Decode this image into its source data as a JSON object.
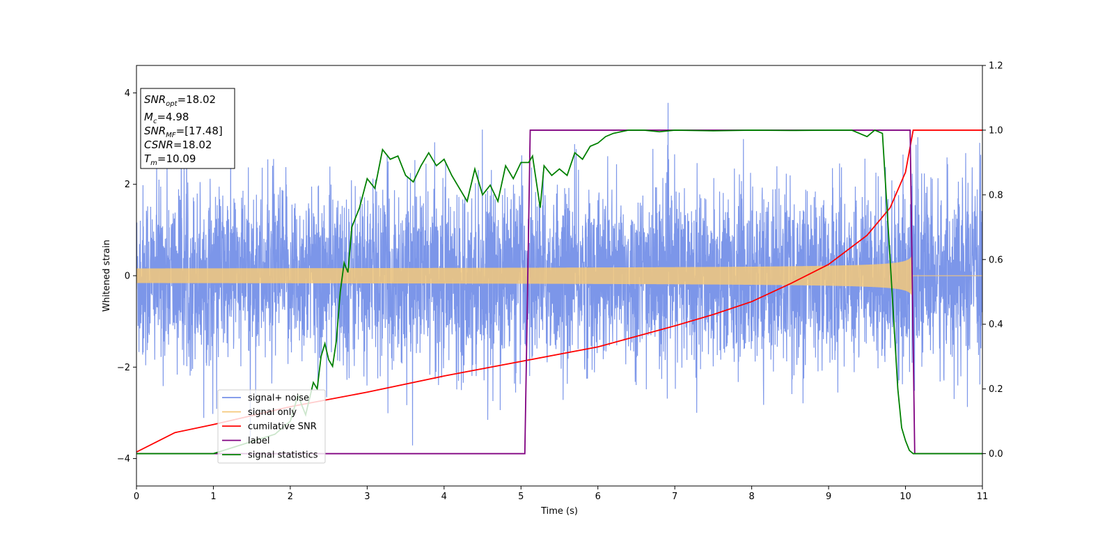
{
  "chart_data": {
    "type": "line",
    "xlabel": "Time (s)",
    "ylabel": "Whitened strain",
    "xlim": [
      0,
      11
    ],
    "ylim_left": [
      -4.6,
      4.6
    ],
    "ylim_right": [
      -0.1,
      1.2
    ],
    "grid": false,
    "legend_placement": "lower-left",
    "x_ticks": [
      "0",
      "1",
      "2",
      "3",
      "4",
      "5",
      "6",
      "7",
      "8",
      "9",
      "10",
      "11"
    ],
    "y_left_ticks": [
      "−4",
      "−2",
      "0",
      "2",
      "4"
    ],
    "y_right_ticks": [
      "0.0",
      "0.2",
      "0.4",
      "0.6",
      "0.8",
      "1.0",
      "1.2"
    ],
    "annotation": {
      "snr_opt": {
        "base": "SNR",
        "sub": "opt",
        "value": "=18.02"
      },
      "mc": {
        "base": "M",
        "sub": "c",
        "value": "=4.98"
      },
      "snr_mf": {
        "base": "SNR",
        "sub": "MF",
        "value": "=[17.48]"
      },
      "csnr": {
        "base": "CSNR",
        "sub": "",
        "value": "=18.02"
      },
      "tm": {
        "base": "T",
        "sub": "m",
        "value": "=10.09"
      }
    },
    "series": [
      {
        "name": "signal+ noise",
        "axis": "left",
        "color": "#7590e8",
        "description": "whitened noise, amplitude mostly within ±2.5, peaks to about ±4.1 over 0–11 s"
      },
      {
        "name": "signal only",
        "axis": "left",
        "color": "#f5c97a",
        "description": "chirp, amplitude ~0.08 at t=0 growing to ~1.1 at t≈10.09 s, zero afterwards",
        "merger_time": 10.09
      },
      {
        "name": "cumilative SNR",
        "axis": "right",
        "color": "#ff0000",
        "x": [
          0,
          0.5,
          1,
          2,
          3,
          4,
          5,
          6,
          7,
          7.5,
          8,
          8.5,
          9,
          9.5,
          9.8,
          10,
          10.1,
          11
        ],
        "y": [
          0.005,
          0.065,
          0.09,
          0.145,
          0.19,
          0.24,
          0.285,
          0.33,
          0.395,
          0.43,
          0.47,
          0.525,
          0.585,
          0.675,
          0.76,
          0.87,
          1.0,
          1.0
        ]
      },
      {
        "name": "label",
        "axis": "right",
        "color": "#800080",
        "x": [
          0,
          5.05,
          5.12,
          10.06,
          10.12,
          11
        ],
        "y": [
          0.0,
          0.0,
          1.0,
          1.0,
          0.0,
          0.0
        ]
      },
      {
        "name": "signal statistics",
        "axis": "right",
        "color": "#008000",
        "x": [
          0,
          1.0,
          1.8,
          2.0,
          2.1,
          2.2,
          2.3,
          2.35,
          2.4,
          2.45,
          2.5,
          2.55,
          2.6,
          2.65,
          2.7,
          2.75,
          2.8,
          2.9,
          3.0,
          3.1,
          3.2,
          3.3,
          3.4,
          3.5,
          3.6,
          3.7,
          3.8,
          3.9,
          4.0,
          4.1,
          4.2,
          4.3,
          4.4,
          4.5,
          4.6,
          4.7,
          4.8,
          4.9,
          5.0,
          5.1,
          5.15,
          5.2,
          5.25,
          5.3,
          5.4,
          5.5,
          5.6,
          5.7,
          5.8,
          5.9,
          6.0,
          6.1,
          6.2,
          6.4,
          6.6,
          6.8,
          7.0,
          7.5,
          8.0,
          8.5,
          9.0,
          9.3,
          9.5,
          9.6,
          9.7,
          9.8,
          9.85,
          9.9,
          9.95,
          10.0,
          10.05,
          10.1,
          10.2,
          11
        ],
        "y": [
          0.0,
          0.0,
          0.06,
          0.1,
          0.18,
          0.12,
          0.22,
          0.2,
          0.3,
          0.34,
          0.29,
          0.27,
          0.35,
          0.5,
          0.59,
          0.56,
          0.7,
          0.76,
          0.85,
          0.82,
          0.94,
          0.91,
          0.92,
          0.86,
          0.84,
          0.89,
          0.93,
          0.89,
          0.91,
          0.86,
          0.82,
          0.78,
          0.88,
          0.8,
          0.83,
          0.78,
          0.89,
          0.85,
          0.9,
          0.9,
          0.92,
          0.84,
          0.76,
          0.89,
          0.86,
          0.88,
          0.86,
          0.93,
          0.91,
          0.95,
          0.96,
          0.98,
          0.99,
          1.0,
          1.0,
          0.995,
          1.0,
          0.998,
          1.0,
          0.999,
          1.0,
          1.0,
          0.98,
          1.0,
          0.99,
          0.6,
          0.4,
          0.2,
          0.08,
          0.04,
          0.01,
          0.0,
          0.0,
          0.0
        ]
      }
    ]
  }
}
